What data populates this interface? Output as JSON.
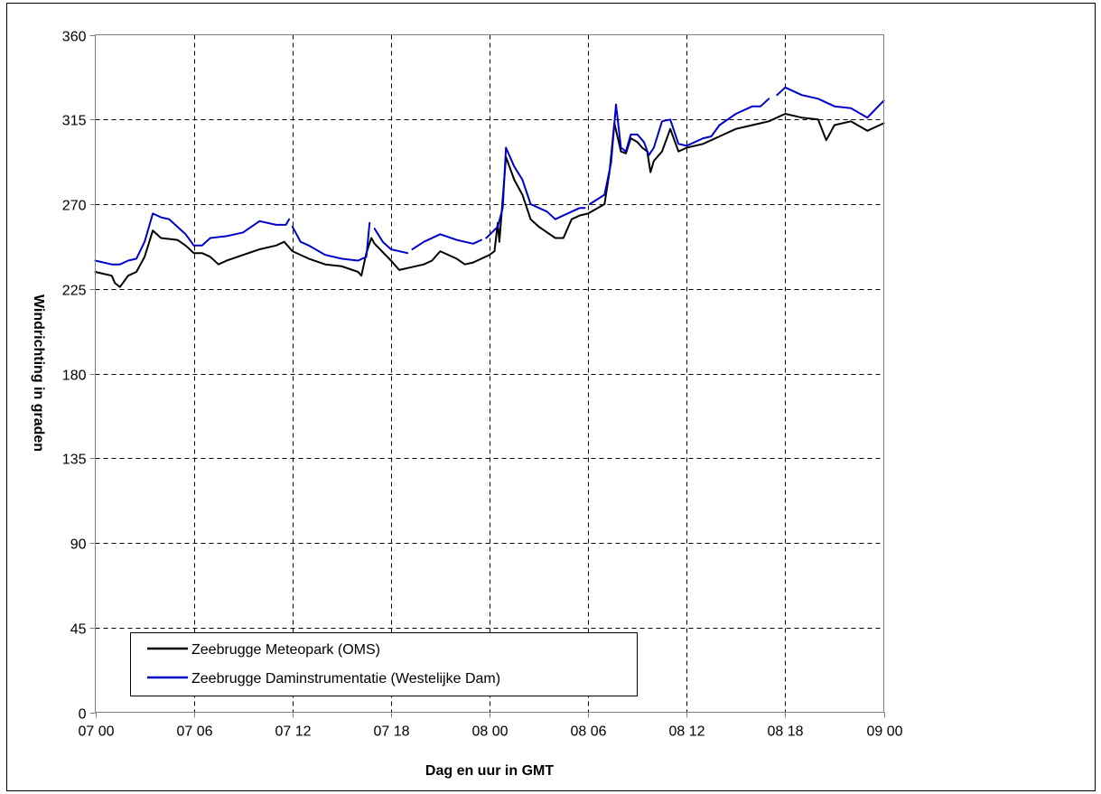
{
  "chart_data": {
    "type": "line",
    "xlabel": "Dag en uur in GMT",
    "ylabel": "Windrichting in graden",
    "x_range_hours": [
      0,
      48
    ],
    "x_ticks": [
      {
        "hour": 0,
        "label": "07 00"
      },
      {
        "hour": 6,
        "label": "07 06"
      },
      {
        "hour": 12,
        "label": "07 12"
      },
      {
        "hour": 18,
        "label": "07 18"
      },
      {
        "hour": 24,
        "label": "08 00"
      },
      {
        "hour": 30,
        "label": "08 06"
      },
      {
        "hour": 36,
        "label": "08 12"
      },
      {
        "hour": 42,
        "label": "08 18"
      },
      {
        "hour": 48,
        "label": "09 00"
      }
    ],
    "ylim": [
      0,
      360
    ],
    "y_ticks": [
      0,
      45,
      90,
      135,
      180,
      225,
      270,
      315,
      360
    ],
    "grid": true,
    "legend_position": "bottom-left",
    "series": [
      {
        "name": "Zeebrugge Meteopark (OMS)",
        "color": "#000000",
        "segments": [
          [
            [
              0,
              234
            ],
            [
              0.5,
              233
            ],
            [
              1,
              232
            ],
            [
              1.2,
              228
            ],
            [
              1.5,
              226
            ],
            [
              2,
              232
            ],
            [
              2.5,
              234
            ],
            [
              3,
              242
            ],
            [
              3.5,
              256
            ],
            [
              4,
              252
            ],
            [
              5,
              251
            ],
            [
              5.5,
              248
            ],
            [
              6,
              244
            ],
            [
              6.5,
              244
            ],
            [
              7,
              242
            ],
            [
              7.5,
              238
            ],
            [
              8,
              240
            ],
            [
              9,
              243
            ],
            [
              10,
              246
            ],
            [
              11,
              248
            ],
            [
              11.5,
              250
            ],
            [
              12,
              245
            ],
            [
              13,
              241
            ],
            [
              14,
              238
            ],
            [
              15,
              237
            ],
            [
              16,
              234
            ],
            [
              16.2,
              232
            ],
            [
              16.5,
              244
            ],
            [
              16.8,
              252
            ],
            [
              17,
              249
            ],
            [
              18,
              240
            ],
            [
              18.5,
              235
            ],
            [
              19,
              236
            ],
            [
              20,
              238
            ],
            [
              20.5,
              240
            ],
            [
              21,
              245
            ],
            [
              22,
              241
            ],
            [
              22.5,
              238
            ],
            [
              23,
              239
            ],
            [
              24,
              243
            ],
            [
              24.3,
              245
            ],
            [
              24.5,
              260
            ],
            [
              24.6,
              250
            ],
            [
              25,
              295
            ],
            [
              25.5,
              283
            ],
            [
              26,
              275
            ],
            [
              26.5,
              262
            ],
            [
              27,
              258
            ],
            [
              28,
              252
            ],
            [
              28.5,
              252
            ],
            [
              29,
              262
            ],
            [
              29.5,
              264
            ],
            [
              30,
              265
            ],
            [
              31,
              270
            ],
            [
              31.3,
              287
            ],
            [
              31.6,
              313
            ],
            [
              32,
              298
            ],
            [
              32.3,
              297
            ],
            [
              32.6,
              305
            ],
            [
              33,
              303
            ],
            [
              33.3,
              300
            ],
            [
              33.6,
              298
            ],
            [
              33.8,
              287
            ],
            [
              34,
              293
            ],
            [
              34.5,
              298
            ],
            [
              35,
              310
            ],
            [
              35.5,
              298
            ],
            [
              36,
              300
            ],
            [
              37,
              302
            ],
            [
              38,
              306
            ],
            [
              39,
              310
            ],
            [
              40,
              312
            ],
            [
              41,
              314
            ],
            [
              42,
              318
            ],
            [
              43,
              316
            ],
            [
              44,
              315
            ],
            [
              44.5,
              304
            ],
            [
              45,
              312
            ],
            [
              46,
              314
            ],
            [
              47,
              309
            ],
            [
              48,
              313
            ]
          ]
        ]
      },
      {
        "name": "Zeebrugge Daminstrumentatie (Westelijke Dam)",
        "color": "#0000cc",
        "segments": [
          [
            [
              0,
              240
            ],
            [
              1,
              238
            ],
            [
              1.5,
              238
            ],
            [
              2,
              240
            ],
            [
              2.5,
              241
            ],
            [
              3,
              250
            ],
            [
              3.5,
              265
            ],
            [
              4,
              263
            ],
            [
              4.5,
              262
            ],
            [
              5,
              258
            ],
            [
              5.5,
              254
            ],
            [
              6,
              248
            ],
            [
              6.5,
              248
            ],
            [
              7,
              252
            ],
            [
              8,
              253
            ],
            [
              9,
              255
            ],
            [
              10,
              261
            ],
            [
              11,
              259
            ],
            [
              11.6,
              259
            ],
            [
              11.8,
              262
            ]
          ],
          [
            [
              12,
              258
            ],
            [
              12.5,
              250
            ],
            [
              13,
              248
            ],
            [
              14,
              243
            ],
            [
              15,
              241
            ],
            [
              16,
              240
            ],
            [
              16.5,
              242
            ],
            [
              16.7,
              260
            ]
          ],
          [
            [
              17,
              257
            ],
            [
              17.5,
              250
            ],
            [
              18,
              246
            ],
            [
              19,
              244
            ]
          ],
          [
            [
              19.3,
              246
            ],
            [
              20,
              250
            ],
            [
              21,
              254
            ],
            [
              22,
              251
            ],
            [
              22.5,
              250
            ],
            [
              23,
              249
            ],
            [
              23.5,
              251
            ]
          ],
          [
            [
              23.8,
              252
            ],
            [
              24.5,
              258
            ],
            [
              24.8,
              268
            ],
            [
              25,
              300
            ],
            [
              25.5,
              290
            ],
            [
              26,
              283
            ],
            [
              26.5,
              270
            ],
            [
              27,
              268
            ],
            [
              27.5,
              266
            ],
            [
              28,
              262
            ],
            [
              29,
              266
            ],
            [
              29.5,
              268
            ],
            [
              29.8,
              268
            ]
          ],
          [
            [
              30.1,
              270
            ],
            [
              31,
              275
            ],
            [
              31.4,
              292
            ],
            [
              31.7,
              323
            ],
            [
              32,
              300
            ],
            [
              32.3,
              298
            ],
            [
              32.6,
              307
            ],
            [
              33,
              307
            ],
            [
              33.4,
              303
            ],
            [
              33.7,
              296
            ],
            [
              34,
              300
            ],
            [
              34.5,
              314
            ],
            [
              35,
              315
            ],
            [
              35.5,
              302
            ],
            [
              36,
              301
            ],
            [
              37,
              305
            ],
            [
              37.5,
              306
            ],
            [
              38,
              312
            ],
            [
              39,
              318
            ],
            [
              40,
              322
            ],
            [
              40.5,
              322
            ],
            [
              41,
              326
            ]
          ],
          [
            [
              41.5,
              328
            ],
            [
              42,
              332
            ],
            [
              43,
              328
            ],
            [
              44,
              326
            ],
            [
              45,
              322
            ],
            [
              46,
              321
            ],
            [
              47,
              316
            ],
            [
              48,
              325
            ]
          ]
        ]
      }
    ]
  }
}
